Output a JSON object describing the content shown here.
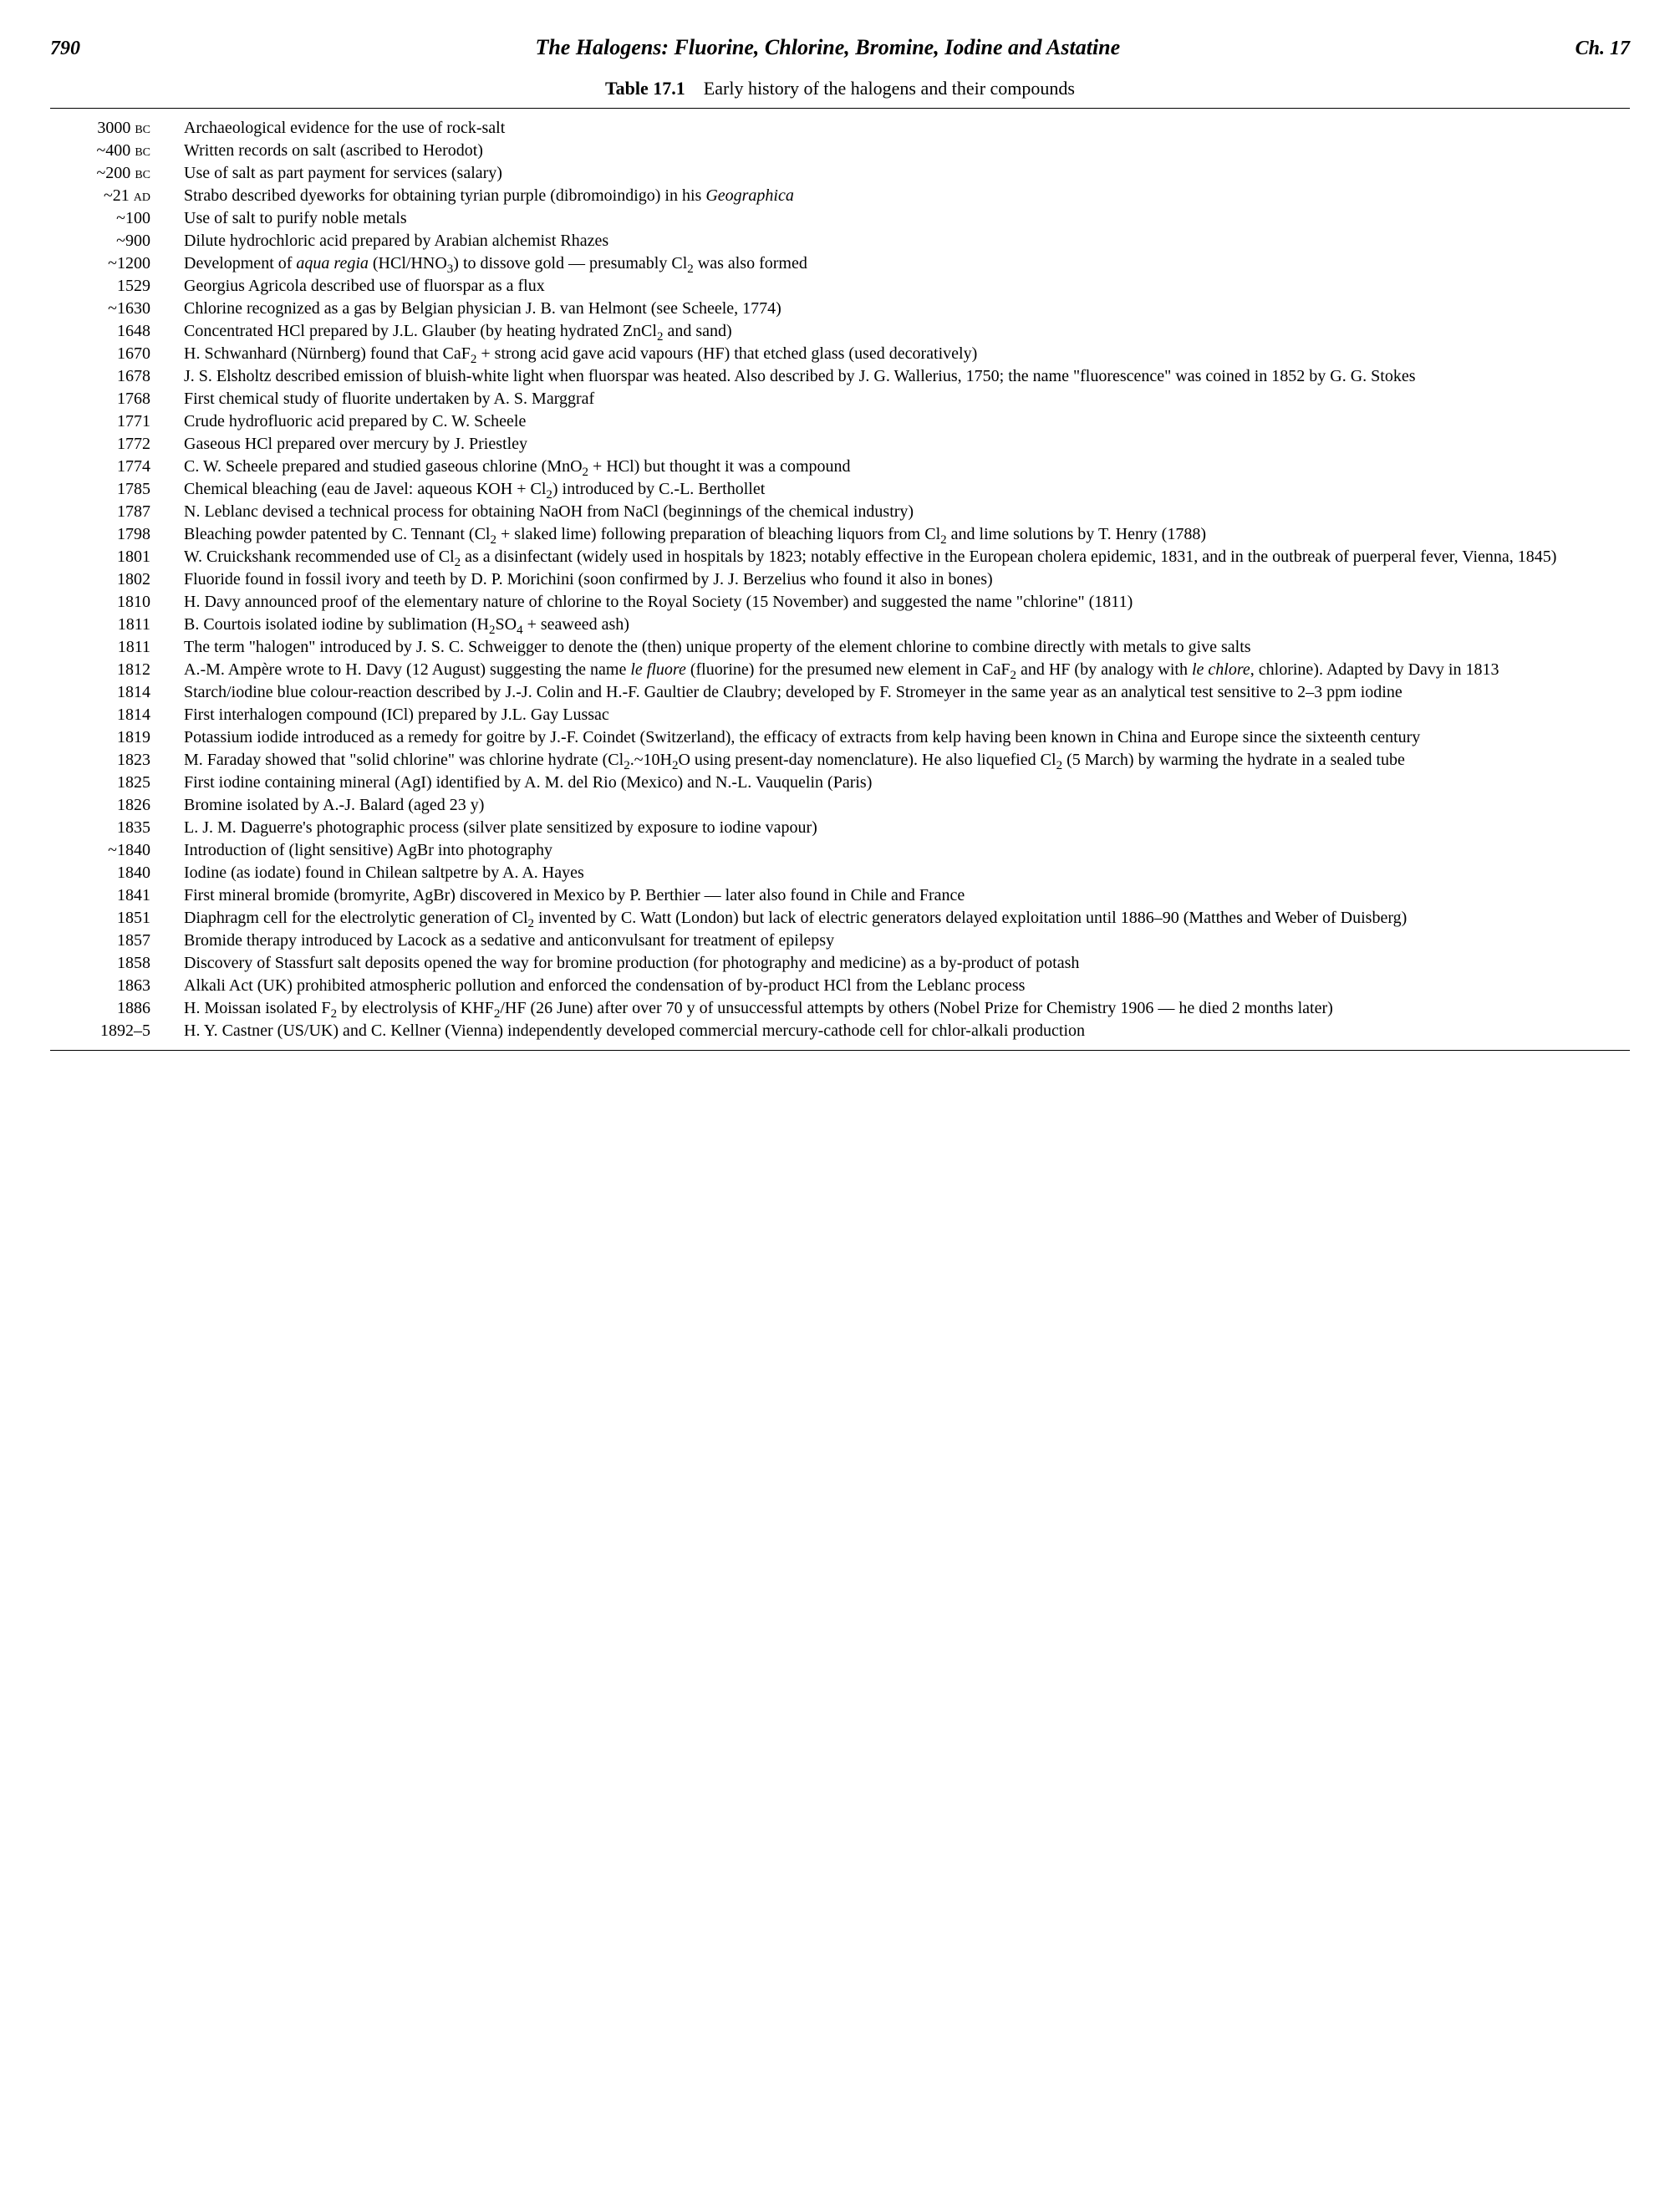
{
  "header": {
    "page_number": "790",
    "title": "The Halogens: Fluorine, Chlorine, Bromine, Iodine and Astatine",
    "chapter": "Ch. 17"
  },
  "table": {
    "label": "Table 17.1",
    "caption": "Early history of the halogens and their compounds"
  },
  "entries": [
    {
      "date": "3000 BC",
      "desc": "Archaeological evidence for the use of rock-salt"
    },
    {
      "date": "~400 BC",
      "desc": "Written records on salt (ascribed to Herodot)"
    },
    {
      "date": "~200 BC",
      "desc": "Use of salt as part payment for services (salary)"
    },
    {
      "date": "~21 AD",
      "desc": "Strabo described dyeworks for obtaining tyrian purple (dibromoindigo) in his <span class=\"italic\">Geographica</span>"
    },
    {
      "date": "~100",
      "desc": "Use of salt to purify noble metals"
    },
    {
      "date": "~900",
      "desc": "Dilute hydrochloric acid prepared by Arabian alchemist Rhazes"
    },
    {
      "date": "~1200",
      "desc": "Development of <span class=\"italic\">aqua regia</span> (HCl/HNO<sub>3</sub>) to dissove gold — presumably Cl<sub>2</sub> was also formed"
    },
    {
      "date": "1529",
      "desc": "Georgius Agricola described use of fluorspar as a flux"
    },
    {
      "date": "~1630",
      "desc": "Chlorine recognized as a gas by Belgian physician J. B. van Helmont (see Scheele, 1774)"
    },
    {
      "date": "1648",
      "desc": "Concentrated HCl prepared by J.L. Glauber (by heating hydrated ZnCl<sub>2</sub> and sand)"
    },
    {
      "date": "1670",
      "desc": "H. Schwanhard (Nürnberg) found that CaF<sub>2</sub> + strong acid gave acid vapours (HF) that etched glass (used decoratively)"
    },
    {
      "date": "1678",
      "desc": "J. S. Elsholtz described emission of bluish-white light when fluorspar was heated. Also described by J. G. Wallerius, 1750; the name \"fluorescence\" was coined in 1852 by G. G. Stokes"
    },
    {
      "date": "1768",
      "desc": "First chemical study of fluorite undertaken by A. S. Marggraf"
    },
    {
      "date": "1771",
      "desc": "Crude hydrofluoric acid prepared by C. W. Scheele"
    },
    {
      "date": "1772",
      "desc": "Gaseous HCl prepared over mercury by J. Priestley"
    },
    {
      "date": "1774",
      "desc": "C. W. Scheele prepared and studied gaseous chlorine (MnO<sub>2</sub> + HCl) but thought it was a compound"
    },
    {
      "date": "1785",
      "desc": "Chemical bleaching (eau de Javel: aqueous KOH + Cl<sub>2</sub>) introduced by C.-L. Berthollet"
    },
    {
      "date": "1787",
      "desc": "N. Leblanc devised a technical process for obtaining NaOH from NaCl (beginnings of the chemical industry)"
    },
    {
      "date": "1798",
      "desc": "Bleaching powder patented by C. Tennant (Cl<sub>2</sub> + slaked lime) following preparation of bleaching liquors from Cl<sub>2</sub> and lime solutions by T. Henry (1788)"
    },
    {
      "date": "1801",
      "desc": "W. Cruickshank recommended use of Cl<sub>2</sub> as a disinfectant (widely used in hospitals by 1823; notably effective in the European cholera epidemic, 1831, and in the outbreak of puerperal fever, Vienna, 1845)"
    },
    {
      "date": "1802",
      "desc": "Fluoride found in fossil ivory and teeth by D. P. Morichini (soon confirmed by J. J. Berzelius who found it also in bones)"
    },
    {
      "date": "1810",
      "desc": "H. Davy announced proof of the elementary nature of chlorine to the Royal Society (15 November) and suggested the name \"chlorine\" (1811)"
    },
    {
      "date": "1811",
      "desc": "B. Courtois isolated iodine by sublimation (H<sub>2</sub>SO<sub>4</sub> + seaweed ash)"
    },
    {
      "date": "1811",
      "desc": "The term \"halogen\" introduced by J. S. C. Schweigger to denote the (then) unique property of the element chlorine to combine directly with metals to give salts"
    },
    {
      "date": "1812",
      "desc": "A.-M. Ampère wrote to H. Davy (12 August) suggesting the name <span class=\"italic\">le fluore</span> (fluorine) for the presumed new element in CaF<sub>2</sub> and HF (by analogy with <span class=\"italic\">le chlore</span>, chlorine). Adapted by Davy in 1813"
    },
    {
      "date": "1814",
      "desc": "Starch/iodine blue colour-reaction described by J.-J. Colin and H.-F. Gaultier de Claubry; developed by F. Stromeyer in the same year as an analytical test sensitive to 2–3 ppm iodine"
    },
    {
      "date": "1814",
      "desc": "First interhalogen compound (ICl) prepared by J.L. Gay Lussac"
    },
    {
      "date": "1819",
      "desc": "Potassium iodide introduced as a remedy for goitre by J.-F. Coindet (Switzerland), the efficacy of extracts from kelp having been known in China and Europe since the sixteenth century"
    },
    {
      "date": "1823",
      "desc": "M. Faraday showed that \"solid chlorine\" was chlorine hydrate (Cl<sub>2</sub>.~10H<sub>2</sub>O using present-day nomenclature). He also liquefied Cl<sub>2</sub> (5 March) by warming the hydrate in a sealed tube"
    },
    {
      "date": "1825",
      "desc": "First iodine containing mineral (AgI) identified by A. M. del Rio (Mexico) and N.-L. Vauquelin (Paris)"
    },
    {
      "date": "1826",
      "desc": "Bromine isolated by A.-J. Balard (aged 23 y)"
    },
    {
      "date": "1835",
      "desc": "L. J. M. Daguerre's photographic process (silver plate sensitized by exposure to iodine vapour)"
    },
    {
      "date": "~1840",
      "desc": "Introduction of (light sensitive) AgBr into photography"
    },
    {
      "date": "1840",
      "desc": "Iodine (as iodate) found in Chilean saltpetre by A. A. Hayes"
    },
    {
      "date": "1841",
      "desc": "First mineral bromide (bromyrite, AgBr) discovered in Mexico by P. Berthier — later also found in Chile and France"
    },
    {
      "date": "1851",
      "desc": "Diaphragm cell for the electrolytic generation of Cl<sub>2</sub> invented by C. Watt (London) but lack of electric generators delayed exploitation until 1886–90 (Matthes and Weber of Duisberg)"
    },
    {
      "date": "1857",
      "desc": "Bromide therapy introduced by Lacock as a sedative and anticonvulsant for treatment of epilepsy"
    },
    {
      "date": "1858",
      "desc": "Discovery of Stassfurt salt deposits opened the way for bromine production (for photography and medicine) as a by-product of potash"
    },
    {
      "date": "1863",
      "desc": "Alkali Act (UK) prohibited atmospheric pollution and enforced the condensation of by-product HCl from the Leblanc process"
    },
    {
      "date": "1886",
      "desc": "H. Moissan isolated F<sub>2</sub> by electrolysis of KHF<sub>2</sub>/HF (26 June) after over 70 y of unsuccessful attempts by others (Nobel Prize for Chemistry 1906 — he died 2 months later)"
    },
    {
      "date": "1892–5",
      "desc": "H. Y. Castner (US/UK) and C. Kellner (Vienna) independently developed commercial mercury-cathode cell for chlor-alkali production"
    }
  ]
}
